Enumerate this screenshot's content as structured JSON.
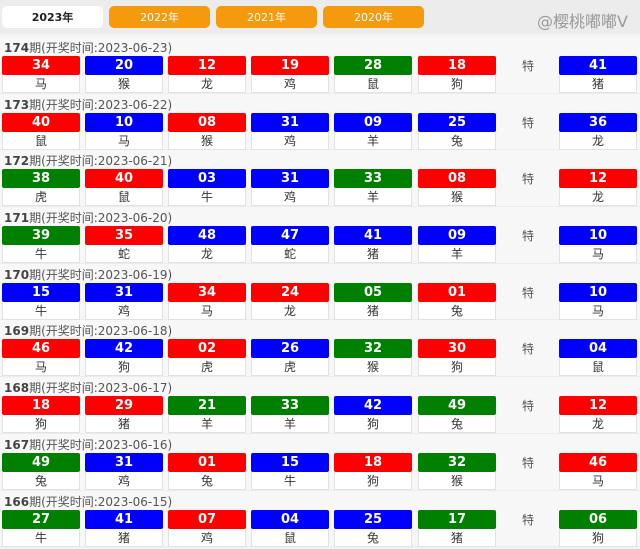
{
  "tabs": [
    "2023年",
    "2022年",
    "2021年",
    "2020年"
  ],
  "active_tab": 0,
  "special_label": "特",
  "colors": {
    "red": "#ff0000",
    "blue": "#0000ff",
    "green": "#008000"
  },
  "draws": [
    {
      "issue": "174",
      "label": "期(开奖时间:2023-06-23)",
      "balls": [
        [
          "34",
          "red",
          "马"
        ],
        [
          "20",
          "blue",
          "猴"
        ],
        [
          "12",
          "red",
          "龙"
        ],
        [
          "19",
          "red",
          "鸡"
        ],
        [
          "28",
          "green",
          "鼠"
        ],
        [
          "18",
          "red",
          "狗"
        ]
      ],
      "special": [
        "41",
        "blue",
        "猪"
      ]
    },
    {
      "issue": "173",
      "label": "期(开奖时间:2023-06-22)",
      "balls": [
        [
          "40",
          "red",
          "鼠"
        ],
        [
          "10",
          "blue",
          "马"
        ],
        [
          "08",
          "red",
          "猴"
        ],
        [
          "31",
          "blue",
          "鸡"
        ],
        [
          "09",
          "blue",
          "羊"
        ],
        [
          "25",
          "blue",
          "兔"
        ]
      ],
      "special": [
        "36",
        "blue",
        "龙"
      ]
    },
    {
      "issue": "172",
      "label": "期(开奖时间:2023-06-21)",
      "balls": [
        [
          "38",
          "green",
          "虎"
        ],
        [
          "40",
          "red",
          "鼠"
        ],
        [
          "03",
          "blue",
          "牛"
        ],
        [
          "31",
          "blue",
          "鸡"
        ],
        [
          "33",
          "green",
          "羊"
        ],
        [
          "08",
          "red",
          "猴"
        ]
      ],
      "special": [
        "12",
        "red",
        "龙"
      ]
    },
    {
      "issue": "171",
      "label": "期(开奖时间:2023-06-20)",
      "balls": [
        [
          "39",
          "green",
          "牛"
        ],
        [
          "35",
          "red",
          "蛇"
        ],
        [
          "48",
          "blue",
          "龙"
        ],
        [
          "47",
          "blue",
          "蛇"
        ],
        [
          "41",
          "blue",
          "猪"
        ],
        [
          "09",
          "blue",
          "羊"
        ]
      ],
      "special": [
        "10",
        "blue",
        "马"
      ]
    },
    {
      "issue": "170",
      "label": "期(开奖时间:2023-06-19)",
      "balls": [
        [
          "15",
          "blue",
          "牛"
        ],
        [
          "31",
          "blue",
          "鸡"
        ],
        [
          "34",
          "red",
          "马"
        ],
        [
          "24",
          "red",
          "龙"
        ],
        [
          "05",
          "green",
          "猪"
        ],
        [
          "01",
          "red",
          "兔"
        ]
      ],
      "special": [
        "10",
        "blue",
        "马"
      ]
    },
    {
      "issue": "169",
      "label": "期(开奖时间:2023-06-18)",
      "balls": [
        [
          "46",
          "red",
          "马"
        ],
        [
          "42",
          "blue",
          "狗"
        ],
        [
          "02",
          "red",
          "虎"
        ],
        [
          "26",
          "blue",
          "虎"
        ],
        [
          "32",
          "green",
          "猴"
        ],
        [
          "30",
          "red",
          "狗"
        ]
      ],
      "special": [
        "04",
        "blue",
        "鼠"
      ]
    },
    {
      "issue": "168",
      "label": "期(开奖时间:2023-06-17)",
      "balls": [
        [
          "18",
          "red",
          "狗"
        ],
        [
          "29",
          "red",
          "猪"
        ],
        [
          "21",
          "green",
          "羊"
        ],
        [
          "33",
          "green",
          "羊"
        ],
        [
          "42",
          "blue",
          "狗"
        ],
        [
          "49",
          "green",
          "兔"
        ]
      ],
      "special": [
        "12",
        "red",
        "龙"
      ]
    },
    {
      "issue": "167",
      "label": "期(开奖时间:2023-06-16)",
      "balls": [
        [
          "49",
          "green",
          "兔"
        ],
        [
          "31",
          "blue",
          "鸡"
        ],
        [
          "01",
          "red",
          "兔"
        ],
        [
          "15",
          "blue",
          "牛"
        ],
        [
          "18",
          "red",
          "狗"
        ],
        [
          "32",
          "green",
          "猴"
        ]
      ],
      "special": [
        "46",
        "red",
        "马"
      ]
    },
    {
      "issue": "166",
      "label": "期(开奖时间:2023-06-15)",
      "balls": [
        [
          "27",
          "green",
          "牛"
        ],
        [
          "41",
          "blue",
          "猪"
        ],
        [
          "07",
          "red",
          "鸡"
        ],
        [
          "04",
          "blue",
          "鼠"
        ],
        [
          "25",
          "blue",
          "兔"
        ],
        [
          "17",
          "green",
          "猪"
        ]
      ],
      "special": [
        "06",
        "green",
        "狗"
      ]
    }
  ],
  "watermark": "@樱桃嘟嘟V"
}
